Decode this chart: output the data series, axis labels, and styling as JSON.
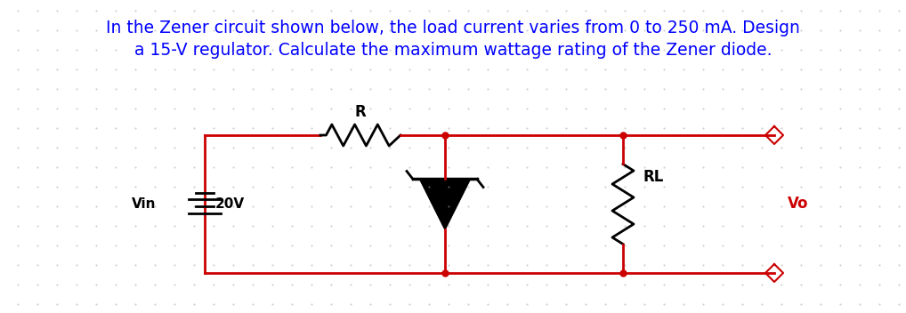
{
  "title_line1": "In the Zener circuit shown below, the load current varies from 0 to 250 mA. Design",
  "title_line2": "a 15-V regulator. Calculate the maximum wattage rating of the Zener diode.",
  "title_color": "#0000FF",
  "title_fontsize": 13.5,
  "circuit_color": "#CC0000",
  "black_color": "#000000",
  "bg_color": "#FFFFFF",
  "dot_color": "#AAAAAA",
  "vin_label": "Vin",
  "vin_value": "20V",
  "r_label": "R",
  "rl_label": "RL",
  "vo_label": "Vo",
  "vo_color": "#CC0000",
  "fig_width": 10.18,
  "fig_height": 3.52,
  "dpi": 100
}
